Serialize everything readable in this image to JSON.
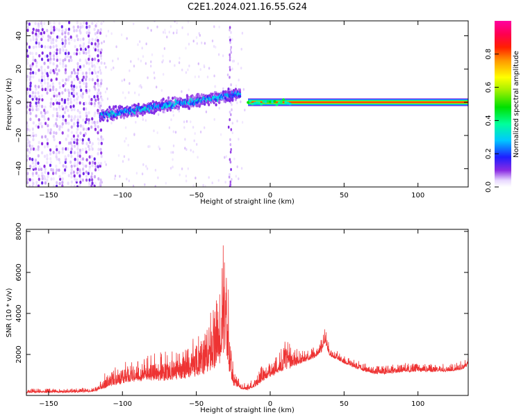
{
  "title": "C2E1.2024.021.16.55.G24",
  "chart_data": [
    {
      "type": "heatmap",
      "xlabel": "Height of straight line (km)",
      "ylabel": "Frequency (Hz)",
      "xlim": [
        -165,
        134
      ],
      "ylim": [
        -51,
        49
      ],
      "xticks": [
        -150,
        -100,
        -50,
        0,
        50,
        100
      ],
      "yticks": [
        -40,
        -20,
        0,
        20,
        40
      ],
      "colorbar": {
        "label": "Normalized spectral amplitude",
        "range": [
          0,
          1
        ],
        "ticks": [
          "0.0",
          "0.2",
          "0.4",
          "0.6",
          "0.8"
        ],
        "colormap": "gist_ncar-like (purple-blue-cyan-green-yellow-red-magenta)"
      },
      "features": {
        "noise_region_x": [
          -165,
          -120
        ],
        "drifting_band": {
          "x": [
            -115,
            -20
          ],
          "freq_start": -8,
          "freq_end": 5
        },
        "vertical_streak_x": -27,
        "steady_line": {
          "x": [
            -15,
            134
          ],
          "freq": 0,
          "amplitude": 1.0
        }
      }
    },
    {
      "type": "line",
      "xlabel": "Height of straight line (km)",
      "ylabel": "SNR (10 * v/v)",
      "xlim": [
        -165,
        134
      ],
      "ylim": [
        0,
        8100
      ],
      "xticks": [
        -150,
        -100,
        -50,
        0,
        50,
        100
      ],
      "yticks": [
        2000,
        4000,
        6000,
        8000
      ],
      "color": "#ee3333",
      "envelope": {
        "x": [
          -165,
          -150,
          -130,
          -120,
          -112,
          -100,
          -90,
          -80,
          -70,
          -60,
          -50,
          -45,
          -40,
          -35,
          -32,
          -30,
          -28,
          -25,
          -20,
          -15,
          -10,
          -5,
          0,
          5,
          10,
          20,
          30,
          35,
          37,
          40,
          50,
          60,
          70,
          80,
          90,
          100,
          110,
          120,
          130,
          134
        ],
        "center": [
          150,
          150,
          170,
          200,
          450,
          700,
          850,
          900,
          900,
          1000,
          1200,
          1300,
          1500,
          1900,
          2500,
          3000,
          1500,
          600,
          350,
          300,
          500,
          800,
          1000,
          1200,
          1400,
          1600,
          1900,
          2200,
          2700,
          2000,
          1600,
          1300,
          1100,
          1100,
          1200,
          1200,
          1200,
          1200,
          1300,
          1500
        ],
        "spread": [
          200,
          200,
          200,
          200,
          700,
          1000,
          1100,
          1300,
          1300,
          1500,
          1800,
          2200,
          2800,
          4000,
          5000,
          8000,
          3000,
          800,
          300,
          300,
          700,
          800,
          700,
          800,
          1500,
          600,
          500,
          600,
          700,
          500,
          400,
          400,
          400,
          400,
          400,
          400,
          400,
          400,
          400,
          400
        ]
      }
    }
  ]
}
